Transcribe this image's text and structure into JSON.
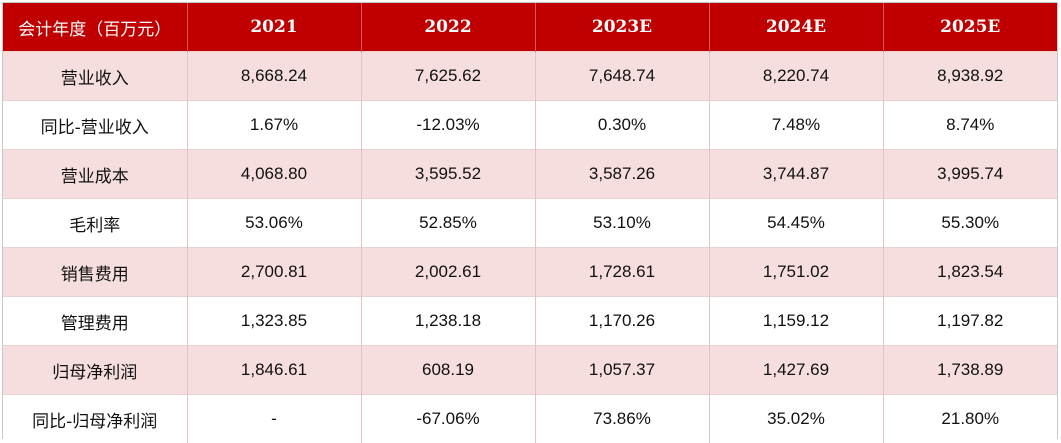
{
  "table": {
    "headers": [
      "会计年度（百万元）",
      "2021",
      "2022",
      "2023E",
      "2024E",
      "2025E"
    ],
    "rows": [
      {
        "label": "营业收入",
        "values": [
          "8,668.24",
          "7,625.62",
          "7,648.74",
          "8,220.74",
          "8,938.92"
        ]
      },
      {
        "label": "同比-营业收入",
        "values": [
          "1.67%",
          "-12.03%",
          "0.30%",
          "7.48%",
          "8.74%"
        ]
      },
      {
        "label": "营业成本",
        "values": [
          "4,068.80",
          "3,595.52",
          "3,587.26",
          "3,744.87",
          "3,995.74"
        ]
      },
      {
        "label": "毛利率",
        "values": [
          "53.06%",
          "52.85%",
          "53.10%",
          "54.45%",
          "55.30%"
        ]
      },
      {
        "label": "销售费用",
        "values": [
          "2,700.81",
          "2,002.61",
          "1,728.61",
          "1,751.02",
          "1,823.54"
        ]
      },
      {
        "label": "管理费用",
        "values": [
          "1,323.85",
          "1,238.18",
          "1,170.26",
          "1,159.12",
          "1,197.82"
        ]
      },
      {
        "label": "归母净利润",
        "values": [
          "1,846.61",
          "608.19",
          "1,057.37",
          "1,427.69",
          "1,738.89"
        ]
      },
      {
        "label": "同比-归母净利润",
        "values": [
          "-",
          "-67.06%",
          "73.86%",
          "35.02%",
          "21.80%"
        ]
      }
    ]
  },
  "colors": {
    "header_bg": "#c00000",
    "header_text": "#ffffff",
    "row_shade": "#f7dede",
    "row_plain": "#ffffff"
  }
}
